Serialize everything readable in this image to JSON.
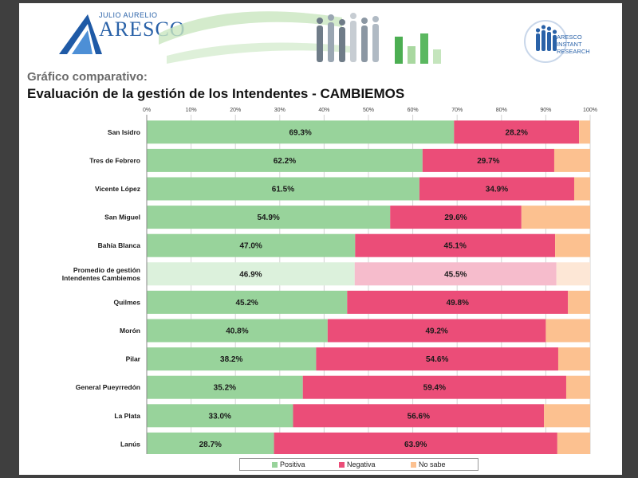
{
  "header": {
    "logo_small": "JULIO AURELIO",
    "logo_big": "ARESCO",
    "right_logo_text": [
      "ARESCO",
      "INSTANT",
      "RESEARCH"
    ],
    "subtitle": "Gráfico comparativo:",
    "title": "Evaluación de la gestión de los Intendentes - CAMBIEMOS"
  },
  "chart_data": {
    "type": "bar",
    "orientation": "horizontal",
    "stacked": true,
    "percent_stacked": true,
    "categories": [
      "San Isidro",
      "Tres de Febrero",
      "Vicente López",
      "San Miguel",
      "Bahía Blanca",
      "Promedio de gestión Intendentes Cambiemos",
      "Quilmes",
      "Morón",
      "Pilar",
      "General Pueyrredón",
      "La Plata",
      "Lanús"
    ],
    "category_lines": [
      [
        "San Isidro"
      ],
      [
        "Tres de Febrero"
      ],
      [
        "Vicente López"
      ],
      [
        "San Miguel"
      ],
      [
        "Bahía Blanca"
      ],
      [
        "Promedio de gestión",
        "Intendentes Cambiemos"
      ],
      [
        "Quilmes"
      ],
      [
        "Morón"
      ],
      [
        "Pilar"
      ],
      [
        "General Pueyrredón"
      ],
      [
        "La Plata"
      ],
      [
        "Lanús"
      ]
    ],
    "series": [
      {
        "name": "Positiva",
        "values": [
          69.3,
          62.2,
          61.5,
          54.9,
          47.0,
          46.9,
          45.2,
          40.8,
          38.2,
          35.2,
          33.0,
          28.7
        ],
        "labels": [
          "69.3%",
          "62.2%",
          "61.5%",
          "54.9%",
          "47.0%",
          "46.9%",
          "45.2%",
          "40.8%",
          "38.2%",
          "35.2%",
          "33.0%",
          "28.7%"
        ],
        "color": "#98d39b",
        "highlight_color": "#dcf1dc"
      },
      {
        "name": "Negativa",
        "values": [
          28.2,
          29.7,
          34.9,
          29.6,
          45.1,
          45.5,
          49.8,
          49.2,
          54.6,
          59.4,
          56.6,
          63.9
        ],
        "labels": [
          "28.2%",
          "29.7%",
          "34.9%",
          "29.6%",
          "45.1%",
          "45.5%",
          "49.8%",
          "49.2%",
          "54.6%",
          "59.4%",
          "56.6%",
          "63.9%"
        ],
        "color": "#eb4d78",
        "highlight_color": "#f6bccc"
      },
      {
        "name": "No sabe",
        "values": [
          2.5,
          8.1,
          3.6,
          15.5,
          7.9,
          7.6,
          5.0,
          10.0,
          7.2,
          5.4,
          10.4,
          7.4
        ],
        "color": "#fcc190",
        "highlight_color": "#fde7d6"
      }
    ],
    "highlight_index": 5,
    "xlim": [
      0,
      100
    ],
    "xticks": [
      "0%",
      "10%",
      "20%",
      "30%",
      "40%",
      "50%",
      "60%",
      "70%",
      "80%",
      "90%",
      "100%"
    ],
    "grid": true,
    "legend_position": "bottom"
  }
}
